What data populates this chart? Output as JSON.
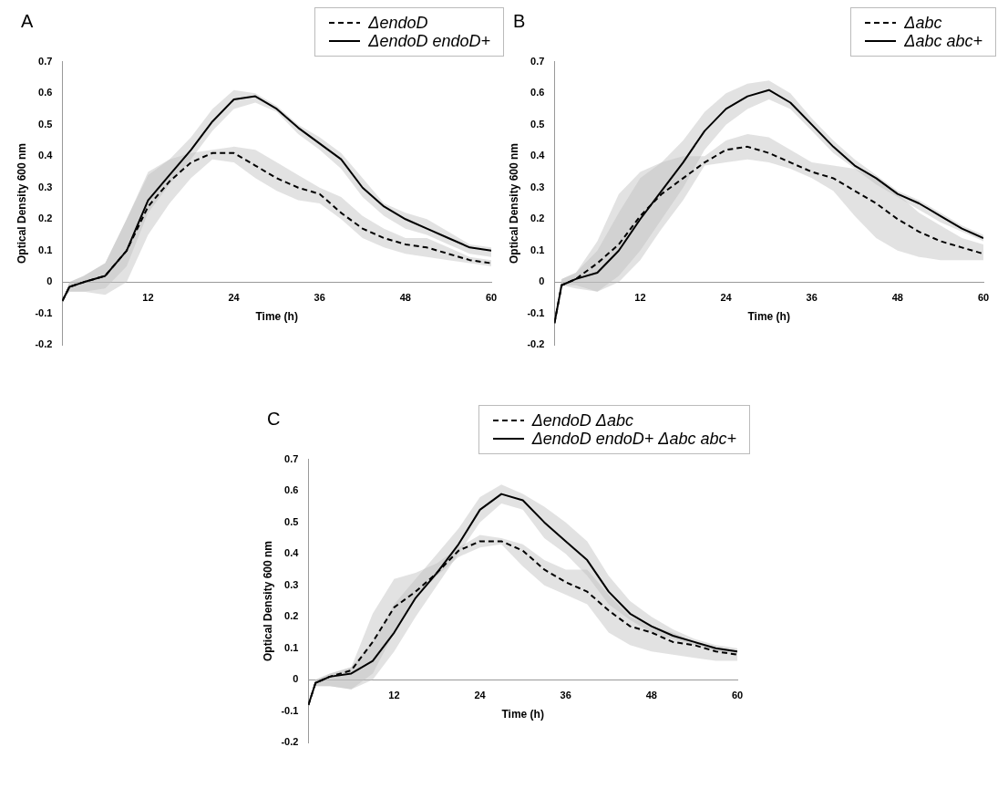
{
  "chart_data": [
    {
      "type": "line",
      "title": "A",
      "xlabel": "Time (h)",
      "ylabel": "Optical Density 600 nm",
      "xlim": [
        0,
        60
      ],
      "xticks": [
        12,
        24,
        36,
        48,
        60
      ],
      "ylim": [
        -0.2,
        0.7
      ],
      "yticks": [
        -0.2,
        -0.1,
        0,
        0.1,
        0.2,
        0.3,
        0.4,
        0.5,
        0.6,
        0.7
      ],
      "grid": false,
      "legend": "top right",
      "x": [
        0,
        1,
        3,
        6,
        9,
        12,
        15,
        18,
        21,
        24,
        27,
        30,
        33,
        36,
        39,
        42,
        45,
        48,
        51,
        54,
        57,
        60
      ],
      "series": [
        {
          "name": "ΔendoD",
          "color": "#000000",
          "line_style": "dashed",
          "values": [
            -0.06,
            -0.015,
            0,
            0.02,
            0.1,
            0.24,
            0.32,
            0.38,
            0.41,
            0.41,
            0.37,
            0.33,
            0.3,
            0.28,
            0.22,
            0.17,
            0.14,
            0.12,
            0.11,
            0.09,
            0.07,
            0.06
          ],
          "lower": [
            -0.06,
            -0.03,
            -0.03,
            -0.04,
            0,
            0.15,
            0.25,
            0.33,
            0.39,
            0.38,
            0.33,
            0.29,
            0.26,
            0.25,
            0.2,
            0.14,
            0.11,
            0.09,
            0.08,
            0.07,
            0.06,
            0.05
          ],
          "upper": [
            -0.06,
            0,
            0.02,
            0.06,
            0.2,
            0.34,
            0.39,
            0.41,
            0.42,
            0.43,
            0.42,
            0.38,
            0.34,
            0.3,
            0.27,
            0.21,
            0.17,
            0.14,
            0.14,
            0.11,
            0.08,
            0.07
          ]
        },
        {
          "name": "ΔendoD endoD+",
          "color": "#000000",
          "line_style": "solid",
          "values": [
            -0.06,
            -0.015,
            0,
            0.02,
            0.1,
            0.26,
            0.34,
            0.42,
            0.51,
            0.58,
            0.59,
            0.55,
            0.49,
            0.44,
            0.39,
            0.3,
            0.24,
            0.2,
            0.17,
            0.14,
            0.11,
            0.1
          ],
          "lower": [
            -0.06,
            -0.03,
            -0.03,
            -0.02,
            0.05,
            0.22,
            0.31,
            0.39,
            0.48,
            0.55,
            0.57,
            0.54,
            0.47,
            0.42,
            0.36,
            0.27,
            0.21,
            0.17,
            0.15,
            0.12,
            0.09,
            0.08
          ],
          "upper": [
            -0.06,
            0,
            0.02,
            0.06,
            0.2,
            0.35,
            0.39,
            0.46,
            0.55,
            0.61,
            0.6,
            0.56,
            0.5,
            0.46,
            0.41,
            0.33,
            0.25,
            0.22,
            0.2,
            0.16,
            0.12,
            0.11
          ]
        }
      ]
    },
    {
      "type": "line",
      "title": "B",
      "xlabel": "Time (h)",
      "ylabel": "Optical Density 600 nm",
      "xlim": [
        0,
        60
      ],
      "xticks": [
        12,
        24,
        36,
        48,
        60
      ],
      "ylim": [
        -0.2,
        0.7
      ],
      "yticks": [
        -0.2,
        -0.1,
        0,
        0.1,
        0.2,
        0.3,
        0.4,
        0.5,
        0.6,
        0.7
      ],
      "grid": false,
      "legend": "top right",
      "x": [
        0,
        1,
        3,
        6,
        9,
        12,
        15,
        18,
        21,
        24,
        27,
        30,
        33,
        36,
        39,
        42,
        45,
        48,
        51,
        54,
        57,
        60
      ],
      "series": [
        {
          "name": "Δabc",
          "color": "#000000",
          "line_style": "dashed",
          "values": [
            -0.13,
            -0.01,
            0.01,
            0.06,
            0.12,
            0.21,
            0.28,
            0.33,
            0.38,
            0.42,
            0.43,
            0.41,
            0.38,
            0.35,
            0.33,
            0.29,
            0.25,
            0.2,
            0.16,
            0.13,
            0.11,
            0.09
          ],
          "lower": [
            -0.13,
            -0.01,
            -0.01,
            -0.03,
            0,
            0.07,
            0.17,
            0.26,
            0.37,
            0.38,
            0.39,
            0.38,
            0.36,
            0.33,
            0.29,
            0.21,
            0.14,
            0.1,
            0.08,
            0.07,
            0.07,
            0.07
          ],
          "upper": [
            -0.13,
            0.01,
            0.03,
            0.13,
            0.28,
            0.35,
            0.38,
            0.4,
            0.4,
            0.45,
            0.47,
            0.46,
            0.42,
            0.38,
            0.37,
            0.36,
            0.33,
            0.28,
            0.22,
            0.18,
            0.14,
            0.12
          ]
        },
        {
          "name": "Δabc abc+",
          "color": "#000000",
          "line_style": "solid",
          "values": [
            -0.13,
            -0.01,
            0.01,
            0.03,
            0.1,
            0.2,
            0.29,
            0.38,
            0.48,
            0.55,
            0.59,
            0.61,
            0.57,
            0.5,
            0.43,
            0.37,
            0.33,
            0.28,
            0.25,
            0.21,
            0.17,
            0.14
          ],
          "lower": [
            -0.13,
            -0.01,
            -0.02,
            -0.03,
            0.02,
            0.1,
            0.2,
            0.3,
            0.42,
            0.5,
            0.55,
            0.58,
            0.55,
            0.48,
            0.41,
            0.36,
            0.31,
            0.27,
            0.23,
            0.19,
            0.16,
            0.13
          ],
          "upper": [
            -0.13,
            0.01,
            0.03,
            0.1,
            0.22,
            0.33,
            0.38,
            0.45,
            0.54,
            0.6,
            0.63,
            0.64,
            0.6,
            0.52,
            0.45,
            0.39,
            0.34,
            0.29,
            0.26,
            0.22,
            0.18,
            0.15
          ]
        }
      ]
    },
    {
      "type": "line",
      "title": "C",
      "xlabel": "Time (h)",
      "ylabel": "Optical Density 600 nm",
      "xlim": [
        0,
        60
      ],
      "xticks": [
        12,
        24,
        36,
        48,
        60
      ],
      "ylim": [
        -0.2,
        0.7
      ],
      "yticks": [
        -0.2,
        -0.1,
        0,
        0.1,
        0.2,
        0.3,
        0.4,
        0.5,
        0.6,
        0.7
      ],
      "grid": false,
      "legend": "top right",
      "x": [
        0,
        1,
        3,
        6,
        9,
        12,
        15,
        18,
        21,
        24,
        27,
        30,
        33,
        36,
        39,
        42,
        45,
        48,
        51,
        54,
        57,
        60
      ],
      "series": [
        {
          "name": "ΔendoD Δabc",
          "color": "#000000",
          "line_style": "dashed",
          "values": [
            -0.08,
            -0.01,
            0.01,
            0.03,
            0.12,
            0.23,
            0.28,
            0.34,
            0.41,
            0.44,
            0.44,
            0.41,
            0.35,
            0.31,
            0.28,
            0.22,
            0.17,
            0.15,
            0.12,
            0.11,
            0.09,
            0.08
          ],
          "lower": [
            -0.08,
            -0.02,
            -0.02,
            -0.03,
            0.02,
            0.15,
            0.26,
            0.33,
            0.39,
            0.42,
            0.43,
            0.36,
            0.3,
            0.27,
            0.24,
            0.15,
            0.11,
            0.09,
            0.08,
            0.07,
            0.06,
            0.06
          ],
          "upper": [
            -0.08,
            0,
            0.02,
            0.04,
            0.21,
            0.32,
            0.34,
            0.37,
            0.42,
            0.46,
            0.45,
            0.43,
            0.38,
            0.35,
            0.35,
            0.27,
            0.2,
            0.17,
            0.15,
            0.12,
            0.1,
            0.09
          ]
        },
        {
          "name": "ΔendoD endoD+ Δabc abc+",
          "color": "#000000",
          "line_style": "solid",
          "values": [
            -0.08,
            -0.01,
            0.01,
            0.02,
            0.06,
            0.15,
            0.26,
            0.34,
            0.43,
            0.54,
            0.59,
            0.57,
            0.5,
            0.44,
            0.38,
            0.28,
            0.21,
            0.17,
            0.14,
            0.12,
            0.1,
            0.09
          ],
          "lower": [
            -0.08,
            -0.02,
            -0.02,
            -0.03,
            0,
            0.09,
            0.2,
            0.3,
            0.4,
            0.5,
            0.56,
            0.54,
            0.45,
            0.4,
            0.33,
            0.24,
            0.19,
            0.15,
            0.13,
            0.11,
            0.09,
            0.08
          ],
          "upper": [
            -0.08,
            0,
            0.02,
            0.04,
            0.12,
            0.24,
            0.32,
            0.4,
            0.48,
            0.58,
            0.62,
            0.59,
            0.55,
            0.5,
            0.44,
            0.33,
            0.25,
            0.2,
            0.16,
            0.13,
            0.11,
            0.1
          ]
        }
      ]
    }
  ]
}
